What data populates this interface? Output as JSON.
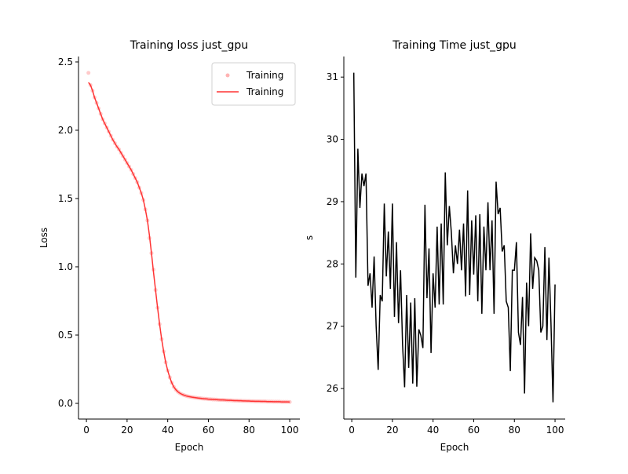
{
  "chart_data": [
    {
      "type": "line",
      "title": "Training loss just_gpu",
      "xlabel": "Epoch",
      "ylabel": "Loss",
      "x": [
        1,
        2,
        3,
        4,
        5,
        6,
        7,
        8,
        9,
        10,
        11,
        12,
        13,
        14,
        15,
        16,
        17,
        18,
        19,
        20,
        21,
        22,
        23,
        24,
        25,
        26,
        27,
        28,
        29,
        30,
        31,
        32,
        33,
        34,
        35,
        36,
        37,
        38,
        39,
        40,
        41,
        42,
        43,
        44,
        45,
        46,
        47,
        48,
        49,
        50,
        51,
        52,
        53,
        54,
        55,
        56,
        57,
        58,
        59,
        60,
        61,
        62,
        63,
        64,
        65,
        66,
        67,
        68,
        69,
        70,
        71,
        72,
        73,
        74,
        75,
        76,
        77,
        78,
        79,
        80,
        81,
        82,
        83,
        84,
        85,
        86,
        87,
        88,
        89,
        90,
        91,
        92,
        93,
        94,
        95,
        96,
        97,
        98,
        99,
        100
      ],
      "series": [
        {
          "name": "Training",
          "type": "scatter",
          "color": "#ffb3b3",
          "values": [
            2.42,
            2.33,
            2.29,
            2.24,
            2.2,
            2.16,
            2.12,
            2.08,
            2.05,
            2.02,
            1.99,
            1.96,
            1.93,
            1.905,
            1.88,
            1.86,
            1.835,
            1.81,
            1.785,
            1.76,
            1.735,
            1.71,
            1.68,
            1.65,
            1.62,
            1.58,
            1.54,
            1.49,
            1.42,
            1.34,
            1.21,
            1.1,
            0.98,
            0.83,
            0.7,
            0.58,
            0.47,
            0.38,
            0.3,
            0.24,
            0.19,
            0.15,
            0.12,
            0.1,
            0.085,
            0.074,
            0.066,
            0.06,
            0.055,
            0.051,
            0.048,
            0.045,
            0.043,
            0.041,
            0.039,
            0.037,
            0.035,
            0.034,
            0.033,
            0.031,
            0.03,
            0.029,
            0.028,
            0.027,
            0.026,
            0.025,
            0.025,
            0.024,
            0.023,
            0.022,
            0.022,
            0.021,
            0.02,
            0.02,
            0.019,
            0.019,
            0.018,
            0.018,
            0.017,
            0.017,
            0.016,
            0.016,
            0.015,
            0.015,
            0.015,
            0.014,
            0.014,
            0.014,
            0.013,
            0.013,
            0.013,
            0.012,
            0.012,
            0.012,
            0.012,
            0.011,
            0.011,
            0.011,
            0.011,
            0.01
          ]
        },
        {
          "name": "Training",
          "type": "line",
          "color": "#ff3333",
          "values": [
            2.35,
            2.33,
            2.29,
            2.24,
            2.2,
            2.16,
            2.12,
            2.08,
            2.05,
            2.02,
            1.99,
            1.96,
            1.93,
            1.905,
            1.88,
            1.86,
            1.835,
            1.81,
            1.785,
            1.76,
            1.735,
            1.71,
            1.68,
            1.65,
            1.62,
            1.58,
            1.54,
            1.49,
            1.42,
            1.34,
            1.23,
            1.1,
            0.96,
            0.83,
            0.7,
            0.58,
            0.47,
            0.38,
            0.3,
            0.24,
            0.19,
            0.15,
            0.12,
            0.1,
            0.085,
            0.074,
            0.066,
            0.06,
            0.055,
            0.051,
            0.048,
            0.045,
            0.043,
            0.041,
            0.039,
            0.037,
            0.035,
            0.034,
            0.033,
            0.031,
            0.03,
            0.029,
            0.028,
            0.027,
            0.026,
            0.025,
            0.025,
            0.024,
            0.023,
            0.022,
            0.022,
            0.021,
            0.02,
            0.02,
            0.019,
            0.019,
            0.018,
            0.018,
            0.017,
            0.017,
            0.016,
            0.016,
            0.015,
            0.015,
            0.015,
            0.014,
            0.014,
            0.014,
            0.013,
            0.013,
            0.013,
            0.012,
            0.012,
            0.012,
            0.012,
            0.011,
            0.011,
            0.011,
            0.011,
            0.01
          ]
        }
      ],
      "xlim": [
        -3.9,
        105
      ],
      "ylim": [
        -0.115,
        2.54
      ],
      "xticks": [
        0,
        20,
        40,
        60,
        80,
        100
      ],
      "yticks": [
        {
          "value": 0,
          "label": "0.0"
        },
        0.5,
        {
          "value": 1,
          "label": "1.0"
        },
        1.5,
        {
          "value": 2,
          "label": "2.0"
        },
        2.5
      ],
      "legend": "upper right"
    },
    {
      "type": "line",
      "title": "Training Time just_gpu",
      "xlabel": "Epoch",
      "ylabel": "s",
      "x": [
        1,
        2,
        3,
        4,
        5,
        6,
        7,
        8,
        9,
        10,
        11,
        12,
        13,
        14,
        15,
        16,
        17,
        18,
        19,
        20,
        21,
        22,
        23,
        24,
        25,
        26,
        27,
        28,
        29,
        30,
        31,
        32,
        33,
        34,
        35,
        36,
        37,
        38,
        39,
        40,
        41,
        42,
        43,
        44,
        45,
        46,
        47,
        48,
        49,
        50,
        51,
        52,
        53,
        54,
        55,
        56,
        57,
        58,
        59,
        60,
        61,
        62,
        63,
        64,
        65,
        66,
        67,
        68,
        69,
        70,
        71,
        72,
        73,
        74,
        75,
        76,
        77,
        78,
        79,
        80,
        81,
        82,
        83,
        84,
        85,
        86,
        87,
        88,
        89,
        90,
        91,
        92,
        93,
        94,
        95,
        96,
        97,
        98,
        99,
        100
      ],
      "series": [
        {
          "type": "line",
          "color": "#000000",
          "values": [
            31.07,
            27.78,
            29.85,
            28.9,
            29.45,
            29.25,
            29.45,
            27.65,
            27.85,
            27.3,
            28.12,
            27.0,
            26.3,
            27.5,
            27.4,
            28.97,
            27.8,
            28.52,
            27.6,
            28.97,
            27.15,
            28.35,
            27.05,
            27.9,
            26.7,
            26.02,
            27.5,
            26.33,
            27.38,
            26.08,
            27.45,
            26.03,
            26.95,
            26.85,
            26.65,
            28.95,
            27.45,
            28.25,
            26.57,
            27.85,
            27.3,
            28.6,
            27.35,
            28.65,
            27.35,
            29.47,
            28.3,
            28.93,
            28.5,
            27.85,
            28.3,
            28.0,
            28.55,
            27.9,
            28.65,
            27.48,
            29.18,
            27.5,
            28.7,
            27.83,
            28.78,
            27.4,
            28.8,
            27.2,
            28.6,
            27.9,
            28.99,
            27.9,
            28.7,
            27.2,
            29.32,
            28.8,
            28.9,
            28.2,
            28.3,
            27.4,
            27.3,
            26.28,
            27.9,
            27.9,
            28.35,
            26.9,
            26.7,
            27.47,
            25.92,
            27.7,
            27.0,
            28.49,
            27.6,
            28.1,
            28.05,
            27.9,
            26.9,
            27.0,
            28.27,
            26.78,
            28.1,
            27.05,
            25.78,
            27.67
          ]
        }
      ],
      "xlim": [
        -3.9,
        105
      ],
      "ylim": [
        25.51,
        31.33
      ],
      "xticks": [
        0,
        20,
        40,
        60,
        80,
        100
      ],
      "yticks": [
        26,
        27,
        28,
        29,
        30,
        31
      ]
    }
  ]
}
